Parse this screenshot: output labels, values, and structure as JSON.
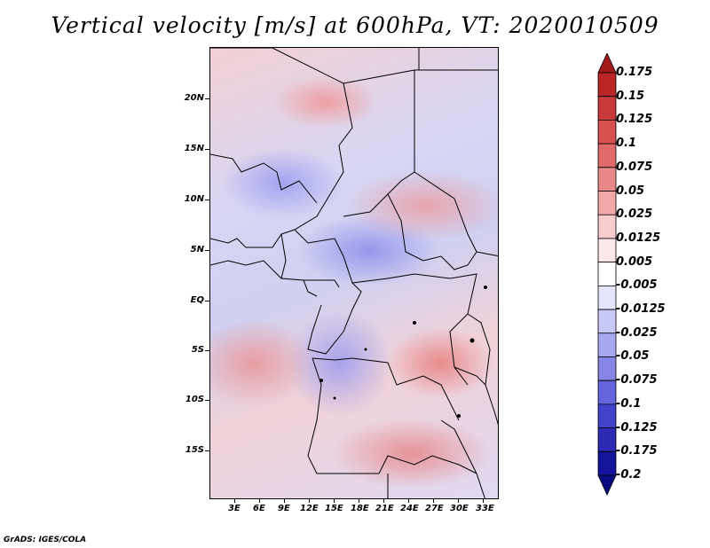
{
  "title": "Vertical velocity [m/s] at 600hPa, VT: 2020010509",
  "lat_labels": [
    "20N",
    "15N",
    "10N",
    "5N",
    "EQ",
    "5S",
    "10S",
    "15S"
  ],
  "lon_labels": [
    "3E",
    "6E",
    "9E",
    "12E",
    "15E",
    "18E",
    "21E",
    "24E",
    "27E",
    "30E",
    "33E"
  ],
  "colorbar": {
    "labels": [
      "0.175",
      "0.15",
      "0.125",
      "0.1",
      "0.075",
      "0.05",
      "0.025",
      "0.0125",
      "0.005",
      "-0.005",
      "-0.0125",
      "-0.025",
      "-0.05",
      "-0.075",
      "-0.1",
      "-0.125",
      "-0.175",
      "-0.2"
    ],
    "colors": [
      "#a31a1a",
      "#b82626",
      "#c83a3a",
      "#d85050",
      "#e06a6a",
      "#ea8888",
      "#f2a8a8",
      "#f8cccc",
      "#fce8e8",
      "#ffffff",
      "#e4e4fc",
      "#c8c8f6",
      "#a8a8f0",
      "#8686e6",
      "#6464dc",
      "#4242cc",
      "#2a2ab4",
      "#14149a",
      "#0a0a80"
    ]
  },
  "credit": "GrADS: IGES/COLA"
}
